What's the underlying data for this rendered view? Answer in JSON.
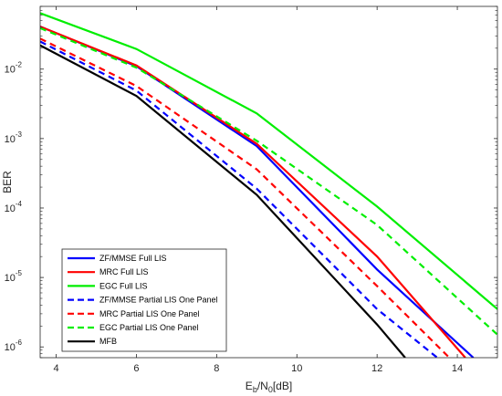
{
  "chart_data": {
    "type": "line",
    "xlabel": {
      "main": "E",
      "sub1": "b",
      "mid": "/N",
      "sub2": "0",
      "tail": "[dB]"
    },
    "ylabel": "BER",
    "xlim": [
      3.6,
      15
    ],
    "ylim": [
      7e-07,
      0.08
    ],
    "yscale": "log",
    "grid": false,
    "legend_position": "bottom-left",
    "x_ticks": [
      4,
      6,
      8,
      10,
      12,
      14
    ],
    "y_ticks": [
      {
        "value": 1e-06,
        "base": "10",
        "exp": "-6"
      },
      {
        "value": 1e-05,
        "base": "10",
        "exp": "-5"
      },
      {
        "value": 0.0001,
        "base": "10",
        "exp": "-4"
      },
      {
        "value": 0.001,
        "base": "10",
        "exp": "-3"
      },
      {
        "value": 0.01,
        "base": "10",
        "exp": "-2"
      }
    ],
    "series": [
      {
        "name": "ZF/MMSE Full LIS",
        "color": "#0000ff",
        "dash": "solid",
        "x": [
          3.6,
          6,
          9,
          12,
          14.4
        ],
        "y": [
          0.041,
          0.011,
          0.00078,
          1.3e-05,
          7e-07
        ]
      },
      {
        "name": "MRC Full LIS",
        "color": "#ff0000",
        "dash": "solid",
        "x": [
          3.6,
          6,
          9,
          12,
          14.2
        ],
        "y": [
          0.041,
          0.0113,
          0.00084,
          2e-05,
          7e-07
        ]
      },
      {
        "name": "EGC Full LIS",
        "color": "#00ee00",
        "dash": "solid",
        "x": [
          3.6,
          6,
          9,
          12,
          15
        ],
        "y": [
          0.064,
          0.0195,
          0.0023,
          0.000105,
          3.5e-06
        ]
      },
      {
        "name": "ZF/MMSE Partial LIS One Panel",
        "color": "#0000ff",
        "dash": "dashed",
        "x": [
          3.6,
          6,
          9,
          12,
          13.5
        ],
        "y": [
          0.025,
          0.0049,
          0.00019,
          3.5e-06,
          7e-07
        ]
      },
      {
        "name": "MRC Partial LIS One Panel",
        "color": "#ff0000",
        "dash": "dashed",
        "x": [
          3.6,
          6,
          9,
          12,
          13.8
        ],
        "y": [
          0.0275,
          0.0057,
          0.00036,
          7.5e-06,
          7e-07
        ]
      },
      {
        "name": "EGC Partial LIS One Panel",
        "color": "#00ee00",
        "dash": "dashed",
        "x": [
          3.6,
          6,
          9,
          12,
          15
        ],
        "y": [
          0.039,
          0.0105,
          0.00093,
          5.7e-05,
          1.5e-06
        ]
      },
      {
        "name": "MFB",
        "color": "#000000",
        "dash": "solid",
        "x": [
          3.6,
          6,
          9,
          12,
          12.7
        ],
        "y": [
          0.022,
          0.0041,
          0.000155,
          2.1e-06,
          7e-07
        ]
      }
    ]
  }
}
